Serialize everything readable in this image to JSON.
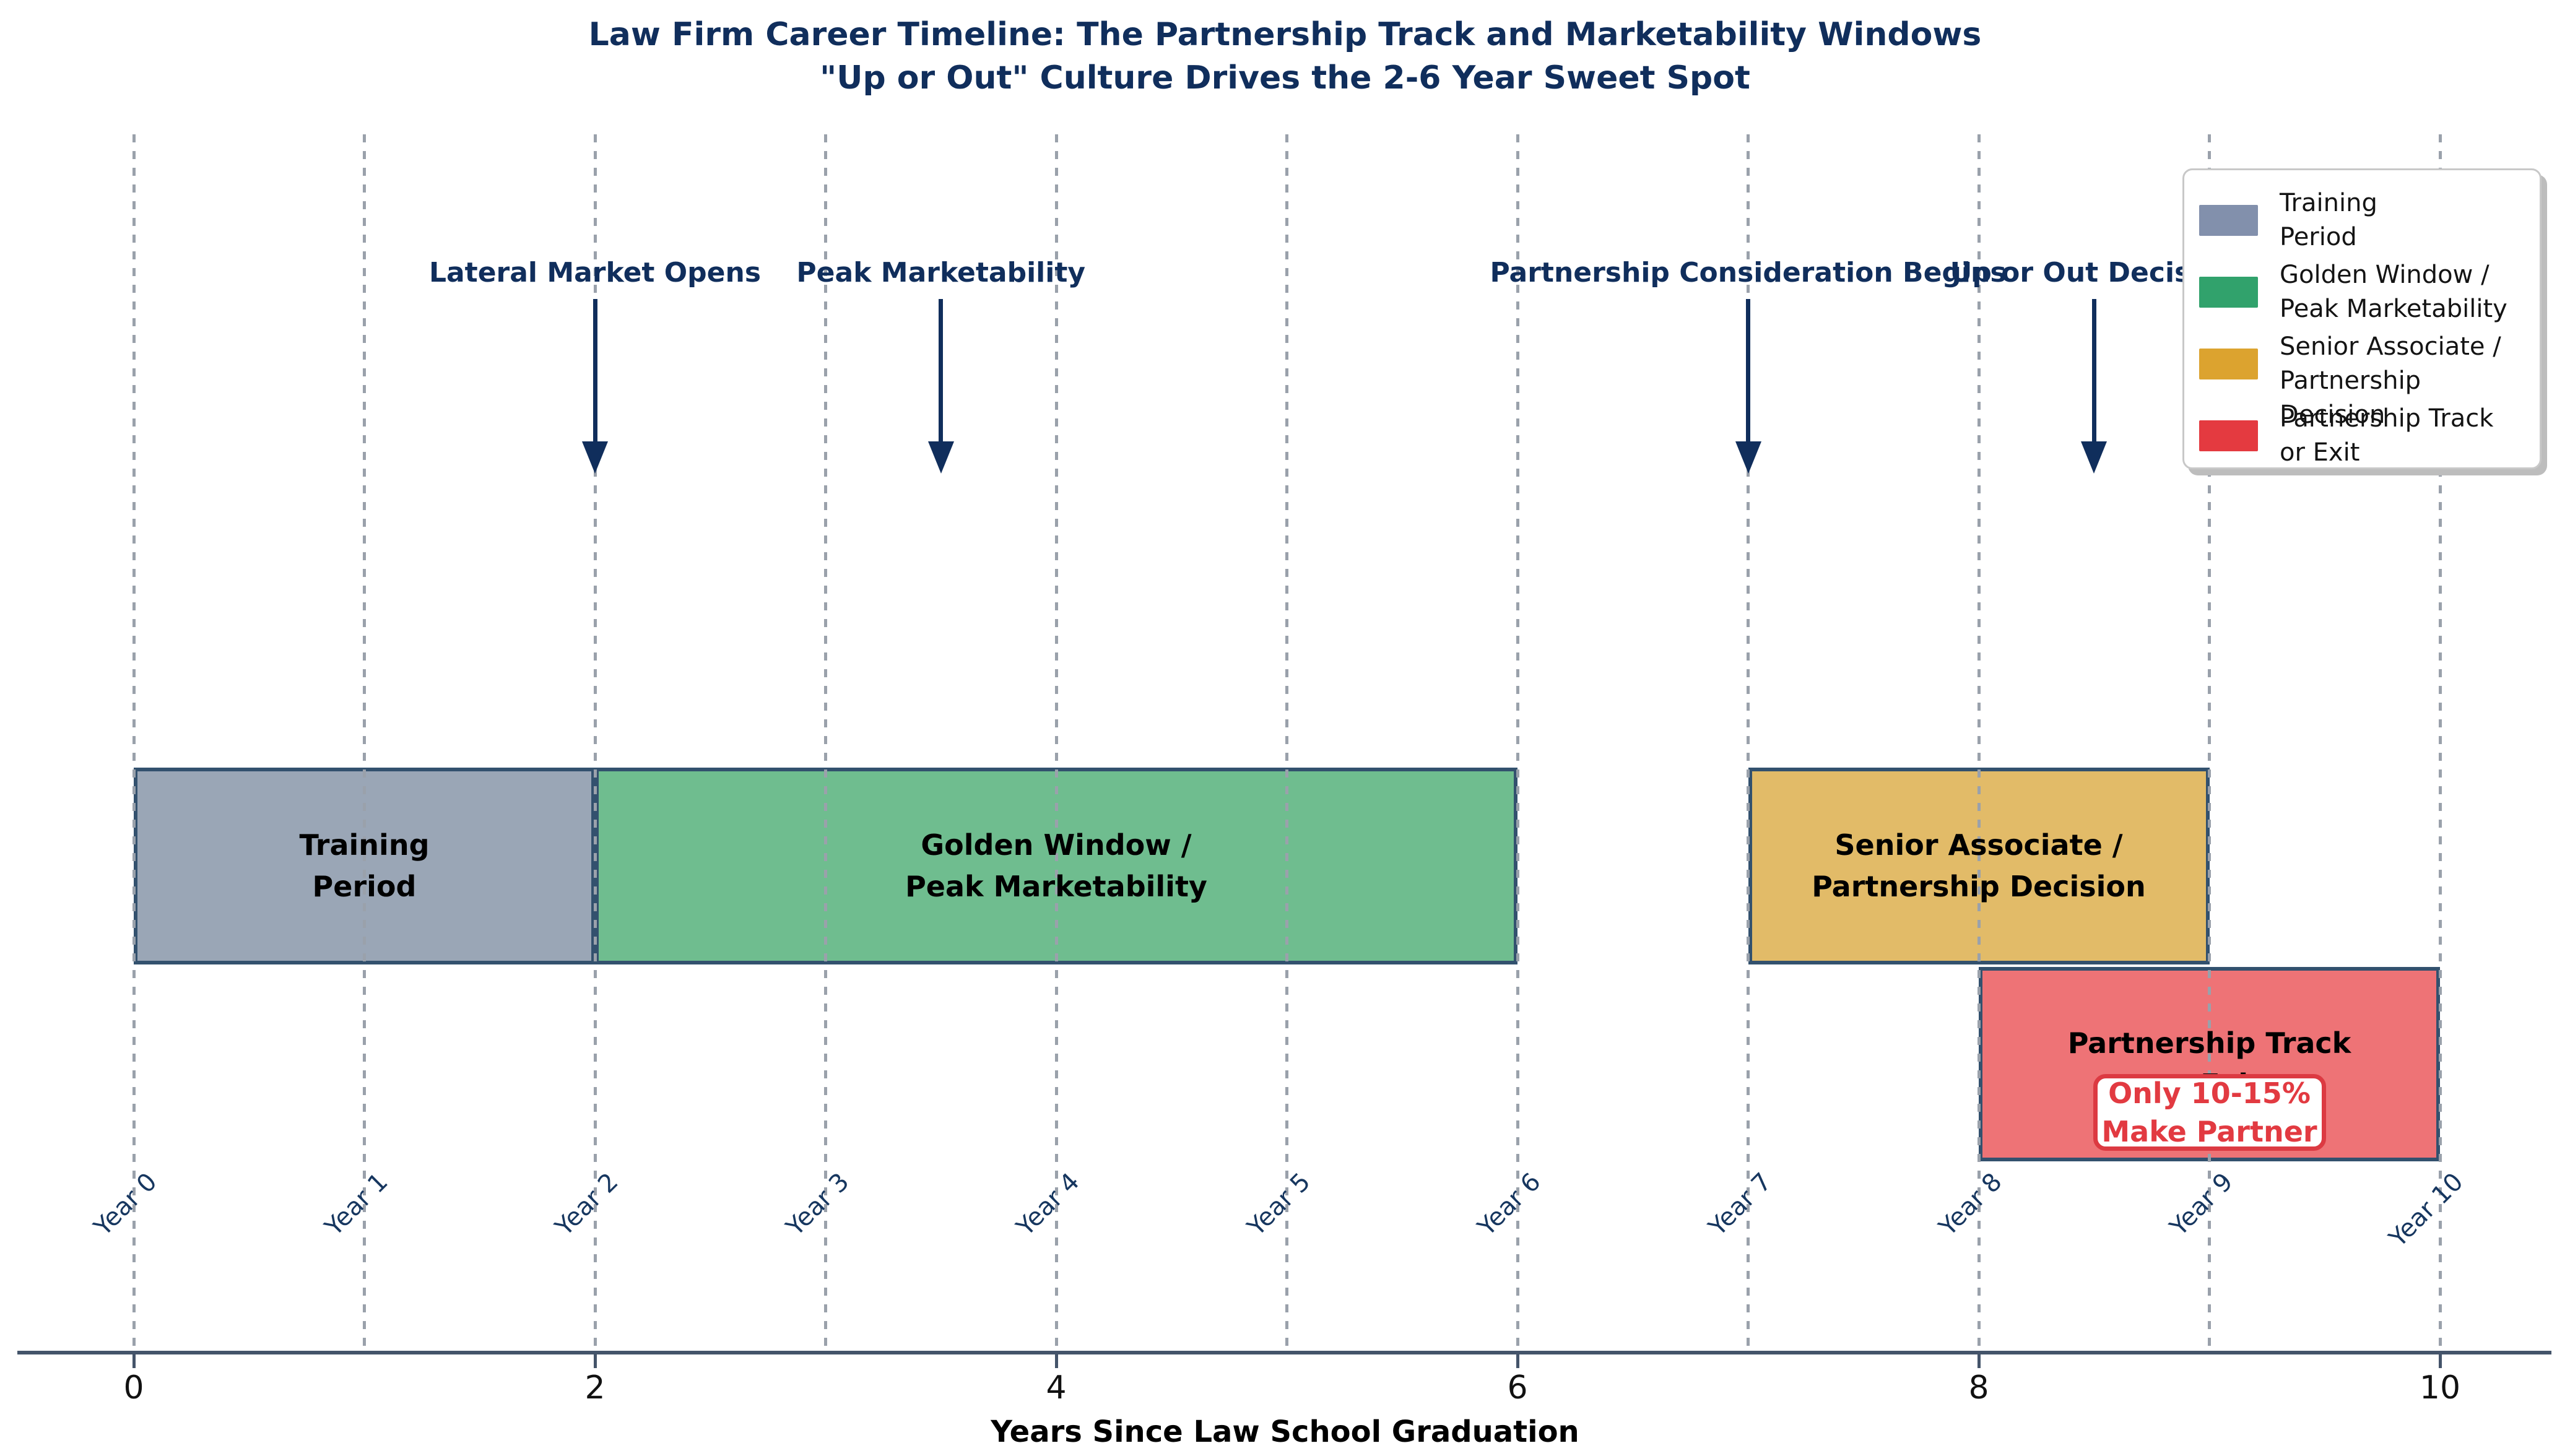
{
  "title": {
    "line1": "Law Firm Career Timeline: The Partnership Track and Marketability Windows",
    "line2": "\"Up or Out\" Culture Drives the 2-6 Year Sweet Spot"
  },
  "chart_data": {
    "type": "bar",
    "subtype": "gantt-timeline",
    "x_axis": {
      "label": "Years Since Law School Graduation",
      "range": [
        0,
        10
      ],
      "tick_values": [
        0,
        2,
        4,
        6,
        8,
        10
      ],
      "tick_labels": [
        "0",
        "2",
        "4",
        "6",
        "8",
        "10"
      ],
      "grid": "dotted-vertical-per-year"
    },
    "year_gridlines": [
      "Year 0",
      "Year 1",
      "Year 2",
      "Year 3",
      "Year 4",
      "Year 5",
      "Year 6",
      "Year 7",
      "Year 8",
      "Year 9",
      "Year 10"
    ],
    "phases": [
      {
        "name": "Training Period",
        "label": "Training\nPeriod",
        "start": 0,
        "end": 2,
        "row": 0,
        "fill": "#9aa6b6",
        "legend_color": "#8290ac"
      },
      {
        "name": "Golden Window / Peak Marketability",
        "label": "Golden Window /\nPeak Marketability",
        "start": 2,
        "end": 6,
        "row": 0,
        "fill": "#6fbd8f",
        "legend_color": "#31a26c"
      },
      {
        "name": "Senior Associate / Partnership Decision",
        "label": "Senior Associate /\nPartnership Decision",
        "start": 7,
        "end": 9,
        "row": 0,
        "fill": "#e2bb68",
        "legend_color": "#dca32f"
      },
      {
        "name": "Partnership Track or Exit",
        "label": "Partnership Track\nor Exit",
        "start": 8,
        "end": 10,
        "row": 1,
        "fill": "#ee7376",
        "legend_color": "#e43a40"
      }
    ],
    "milestones": [
      {
        "label": "Lateral Market Opens",
        "x": 2
      },
      {
        "label": "Peak Marketability",
        "x": 3.5
      },
      {
        "label": "Partnership Consideration Begins",
        "x": 7
      },
      {
        "label": "Up or Out Decision",
        "x": 8.5
      }
    ],
    "callout": {
      "text": "Only 10-15%\nMake Partner",
      "x": 9
    }
  },
  "legend": {
    "items": [
      {
        "label": "Training\nPeriod",
        "color": "#8290ac"
      },
      {
        "label": "Golden Window /\nPeak Marketability",
        "color": "#31a26c"
      },
      {
        "label": "Senior Associate /\nPartnership Decision",
        "color": "#dca32f"
      },
      {
        "label": "Partnership Track\nor Exit",
        "color": "#e43a40"
      }
    ]
  },
  "colors": {
    "navy_text": "#102e5c",
    "axis": "#44546a",
    "grid": "#9aa1ab",
    "bar_border": "#33516e",
    "callout_border": "#dc3a42",
    "callout_text": "#e23a41"
  }
}
